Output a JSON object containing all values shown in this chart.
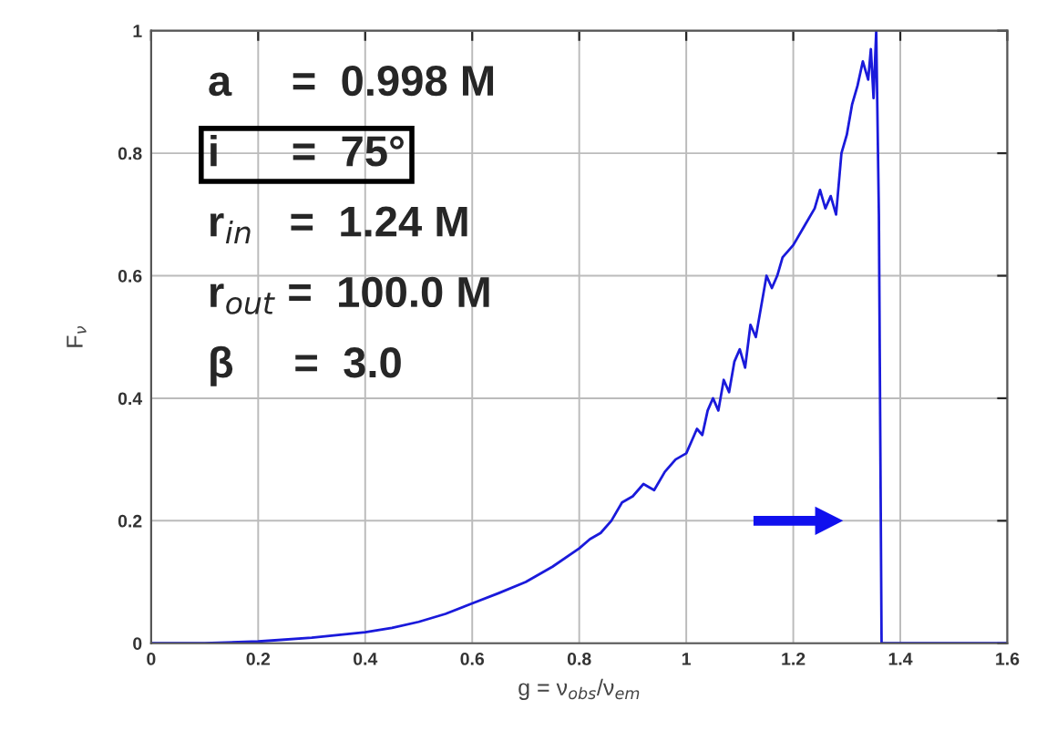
{
  "chart_data": {
    "type": "line",
    "xlabel": "g = ν$_{obs}$/ν$_{em}$",
    "ylabel": "F$_{ν}$",
    "annotations": [
      "a     =  0.998 M",
      "i      =  75°",
      "r$_{in}$   =  1.24 M",
      "r$_{out}$ =  100.0 M",
      "β     =  3.0"
    ],
    "series": [
      {
        "color": "#1a1adb",
        "x": [
          0,
          0.1,
          0.2,
          0.3,
          0.4,
          0.45,
          0.5,
          0.55,
          0.6,
          0.65,
          0.7,
          0.75,
          0.8,
          0.82,
          0.84,
          0.86,
          0.88,
          0.9,
          0.92,
          0.94,
          0.96,
          0.98,
          1.0,
          1.01,
          1.02,
          1.03,
          1.04,
          1.05,
          1.06,
          1.07,
          1.08,
          1.09,
          1.1,
          1.11,
          1.12,
          1.13,
          1.14,
          1.15,
          1.16,
          1.17,
          1.18,
          1.2,
          1.22,
          1.24,
          1.25,
          1.26,
          1.27,
          1.28,
          1.29,
          1.3,
          1.31,
          1.32,
          1.33,
          1.34,
          1.345,
          1.35,
          1.355,
          1.36,
          1.365,
          1.6
        ],
        "values": [
          0,
          0,
          0.003,
          0.009,
          0.018,
          0.025,
          0.035,
          0.048,
          0.065,
          0.082,
          0.1,
          0.125,
          0.155,
          0.17,
          0.18,
          0.2,
          0.23,
          0.24,
          0.26,
          0.25,
          0.28,
          0.3,
          0.31,
          0.33,
          0.35,
          0.34,
          0.38,
          0.4,
          0.38,
          0.43,
          0.41,
          0.46,
          0.48,
          0.45,
          0.52,
          0.5,
          0.55,
          0.6,
          0.58,
          0.6,
          0.63,
          0.65,
          0.68,
          0.71,
          0.74,
          0.71,
          0.73,
          0.7,
          0.8,
          0.83,
          0.88,
          0.91,
          0.95,
          0.92,
          0.97,
          0.89,
          1.0,
          0.7,
          0,
          0
        ]
      }
    ],
    "xlim": [
      0,
      1.6
    ],
    "ylim": [
      0,
      1
    ],
    "xticks": [
      0,
      0.2,
      0.4,
      0.6,
      0.8,
      1,
      1.2,
      1.4,
      1.6
    ],
    "yticks": [
      0,
      0.2,
      0.4,
      0.6,
      0.8,
      1
    ],
    "grid": true,
    "line_style": "solid",
    "marker": "none"
  }
}
